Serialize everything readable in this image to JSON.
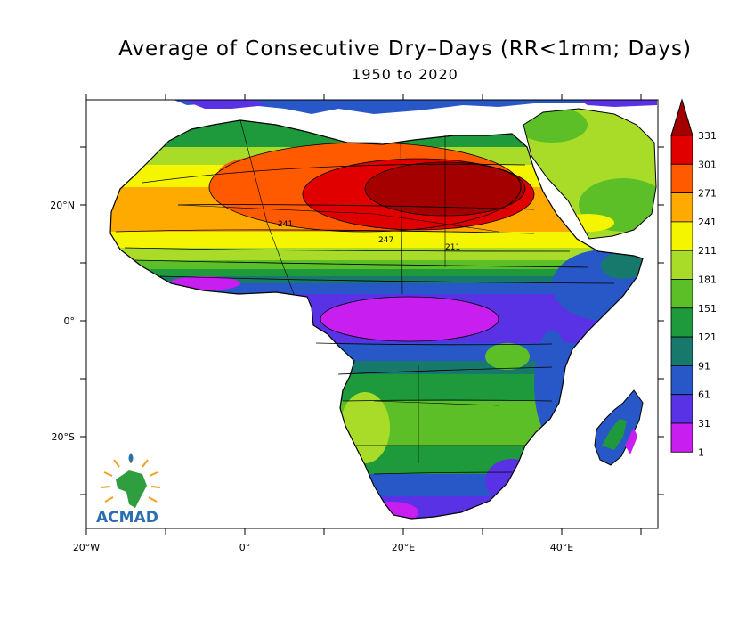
{
  "header": {
    "title": "Average of Consecutive Dry–Days (RR<1mm; Days)",
    "subtitle": "1950 to 2020"
  },
  "axes": {
    "x_ticks": [
      {
        "label": "20°W",
        "lon": -20
      },
      {
        "label": "0°",
        "lon": 0
      },
      {
        "label": "20°E",
        "lon": 20
      },
      {
        "label": "40°E",
        "lon": 40
      }
    ],
    "y_ticks": [
      {
        "label": "20°N",
        "lat": 20
      },
      {
        "label": "0°",
        "lat": 0
      },
      {
        "label": "20°S",
        "lat": -20
      }
    ]
  },
  "colorbar": {
    "levels": [
      "331",
      "301",
      "271",
      "241",
      "211",
      "181",
      "151",
      "121",
      "91",
      "61",
      "31",
      "1"
    ],
    "colors": [
      "#a50000",
      "#e00000",
      "#ff5a00",
      "#ffaa00",
      "#f5f500",
      "#a8dc28",
      "#5cbf28",
      "#1e9a3c",
      "#17786c",
      "#2858c8",
      "#5a32e6",
      "#c81ef0"
    ]
  },
  "contour_labels": [
    "241",
    "247",
    "211"
  ],
  "logo": {
    "text": "ACMAD"
  }
}
